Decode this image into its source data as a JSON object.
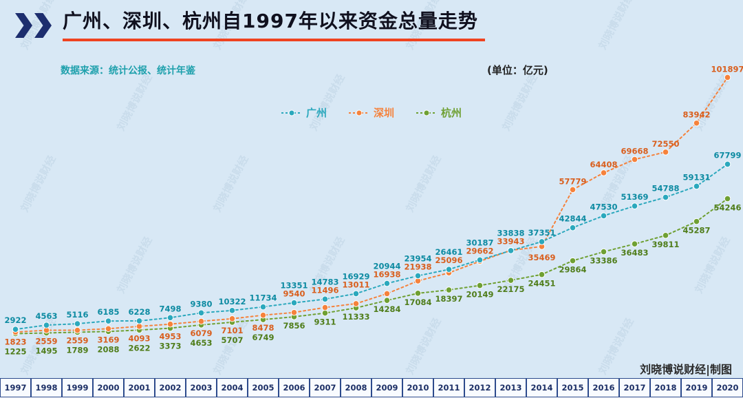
{
  "header": {
    "title": "广州、深圳、杭州自1997年以来资金总量走势",
    "source": "数据来源：统计公报、统计年鉴",
    "unit": "(单位：亿元)"
  },
  "watermark": {
    "text": "刘晓博说财经"
  },
  "credit": "刘晓博说财经|制图",
  "colors": {
    "background": "#d8e8f5",
    "title_text": "#10101e",
    "accent_underline": "#ef4320",
    "source_text": "#1ea0ac",
    "axis_border": "#2c4a8c",
    "axis_text": "#1c2f66",
    "watermark": "#6b8fae"
  },
  "chart_data": {
    "type": "line",
    "title": "广州、深圳、杭州自1997年以来资金总量走势",
    "unit": "亿元",
    "line_style": "dashed",
    "marker": "circle",
    "grid": false,
    "legend_position": "top-center",
    "ylim": [
      0,
      102000
    ],
    "categories": [
      "1997年",
      "1998年",
      "1999年",
      "2000年",
      "2001年",
      "2002年",
      "2003年",
      "2004年",
      "2005年",
      "2006年",
      "2007年",
      "2008年",
      "2009年",
      "2010年",
      "2011年",
      "2012年",
      "2013年",
      "2014年",
      "2015年",
      "2016年",
      "2017年",
      "2018年",
      "2019年",
      "2020年"
    ],
    "series": [
      {
        "name": "广州",
        "color": "#2ba8bd",
        "label_color": "#0e8ba2",
        "values": [
          2922,
          4563,
          5116,
          6185,
          6228,
          7498,
          9380,
          10322,
          11734,
          13351,
          14783,
          16929,
          20944,
          23954,
          26461,
          30187,
          33838,
          37351,
          42844,
          47530,
          51369,
          54788,
          59131,
          67799
        ]
      },
      {
        "name": "深圳",
        "color": "#f5823c",
        "label_color": "#d95f1e",
        "values": [
          1823,
          2559,
          2559,
          3169,
          4093,
          4953,
          6079,
          7101,
          8478,
          9540,
          11496,
          13011,
          16938,
          21938,
          25096,
          29662,
          33943,
          35469,
          57779,
          64408,
          69668,
          72550,
          83942,
          101897
        ]
      },
      {
        "name": "杭州",
        "color": "#6fa033",
        "label_color": "#4f7d1a",
        "values": [
          1225,
          1495,
          1789,
          2088,
          2622,
          3373,
          4653,
          5707,
          6749,
          7856,
          9311,
          11333,
          14284,
          17084,
          18397,
          20149,
          22175,
          24451,
          29864,
          33386,
          36483,
          39811,
          45287,
          54246
        ]
      }
    ]
  }
}
